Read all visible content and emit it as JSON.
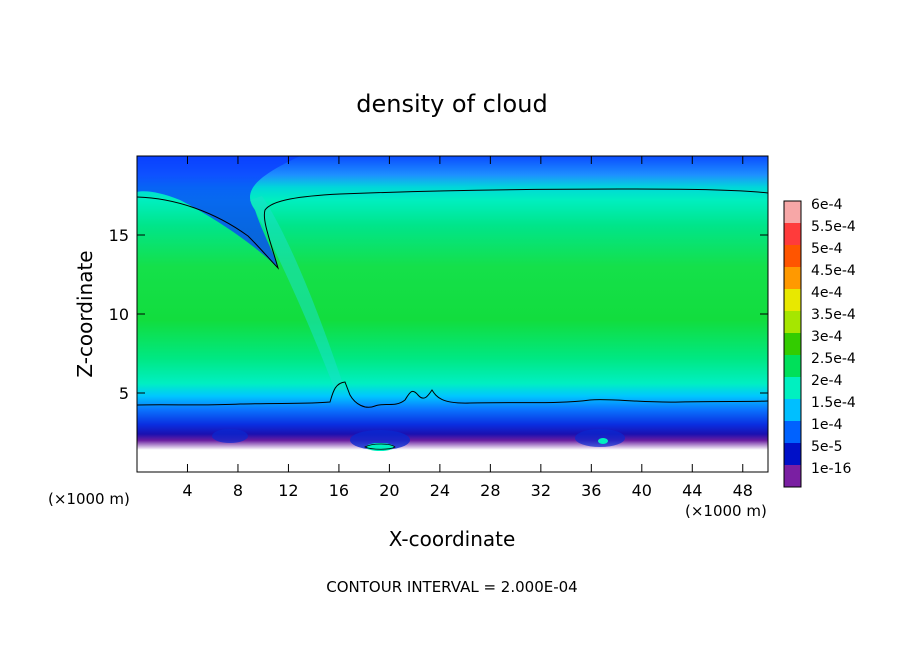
{
  "chart_data": {
    "type": "heatmap",
    "title": "density of cloud",
    "xlabel": "X-coordinate",
    "ylabel": "Z-coordinate",
    "x_unit": "(×1000 m)",
    "y_unit": "(×1000 m)",
    "xlim": [
      0,
      50
    ],
    "ylim": [
      0,
      20
    ],
    "x_ticks": [
      4,
      8,
      12,
      16,
      20,
      24,
      28,
      32,
      36,
      40,
      44,
      48
    ],
    "y_ticks": [
      5,
      10,
      15
    ],
    "footer": "CONTOUR INTERVAL = 2.000E-04",
    "contour_interval": 0.0002,
    "colorbar": {
      "labels": [
        "6e-4",
        "5.5e-4",
        "5e-4",
        "4.5e-4",
        "4e-4",
        "3.5e-4",
        "3e-4",
        "2.5e-4",
        "2e-4",
        "1.5e-4",
        "1e-4",
        "5e-5",
        "1e-16"
      ],
      "levels": [
        0.0006,
        0.00055,
        0.0005,
        0.00045,
        0.0004,
        0.00035,
        0.0003,
        0.00025,
        0.0002,
        0.00015,
        0.0001,
        5e-05,
        1e-16
      ],
      "colors": [
        "#f7a7a7",
        "#ff3b3b",
        "#ff5500",
        "#ff9900",
        "#e8e800",
        "#a6e600",
        "#33cc00",
        "#00e05a",
        "#00f0c0",
        "#00bfff",
        "#0062ff",
        "#0010c8",
        "#7a1fa2"
      ]
    }
  }
}
